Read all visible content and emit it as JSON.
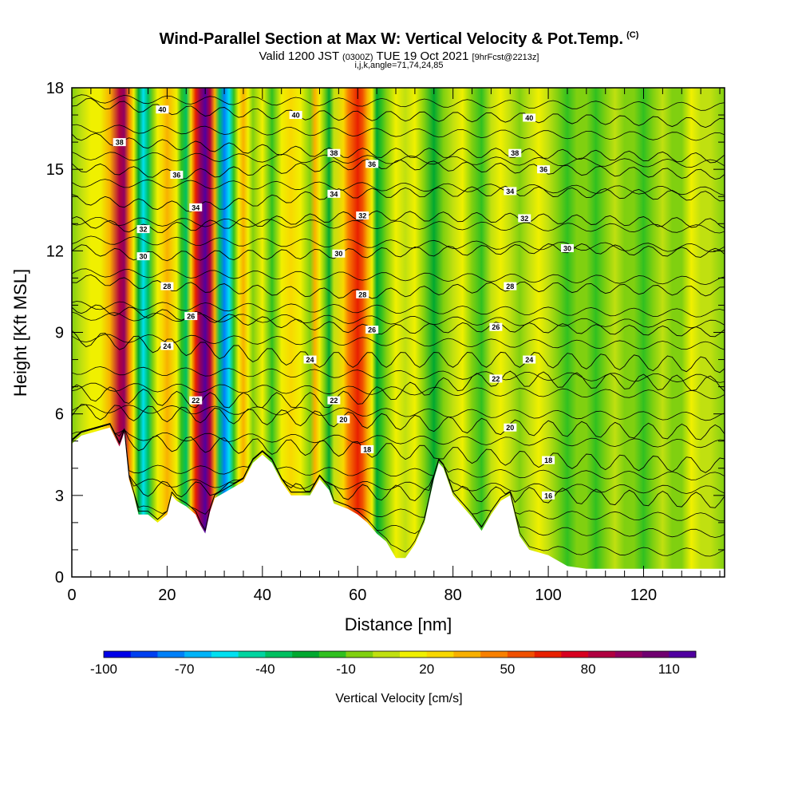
{
  "header": {
    "title": "Wind-Parallel Section at Max W: Vertical Velocity & Pot.Temp.",
    "copyright": "(C)",
    "valid_prefix": "Valid 1200 JST",
    "valid_utc": "(0300Z)",
    "valid_date": "TUE 19 Oct 2021",
    "forecast": "[9hrFcst@2213z]",
    "params": "i,j,k,angle=71,74,24,85"
  },
  "chart_data": {
    "type": "heatmap",
    "xlabel": "Distance [nm]",
    "ylabel": "Height [Kft MSL]",
    "xlim": [
      0,
      137
    ],
    "ylim": [
      0,
      18
    ],
    "x_ticks": [
      "0",
      "20",
      "40",
      "60",
      "80",
      "100",
      "120"
    ],
    "y_ticks": [
      "0",
      "3",
      "6",
      "9",
      "12",
      "15",
      "18"
    ],
    "x_tick_values": [
      0,
      20,
      40,
      60,
      80,
      100,
      120
    ],
    "y_tick_values": [
      0,
      3,
      6,
      9,
      12,
      15,
      18
    ],
    "colorbar": {
      "title": "Vertical Velocity [cm/s]",
      "min": -100,
      "max": 120,
      "step": 10,
      "tick_labels": [
        "-100",
        "-70",
        "-40",
        "-10",
        "20",
        "50",
        "80",
        "110"
      ],
      "tick_values": [
        -100,
        -70,
        -40,
        -10,
        20,
        50,
        80,
        110
      ],
      "colors": [
        "#0000e8",
        "#0040f0",
        "#0080f8",
        "#00b4f8",
        "#00e0f0",
        "#00d4a0",
        "#00c060",
        "#00a830",
        "#30c020",
        "#80d010",
        "#c0e010",
        "#f0f000",
        "#f8d800",
        "#f8b000",
        "#f88000",
        "#f05000",
        "#e82000",
        "#d80020",
        "#b00040",
        "#900060",
        "#700070",
        "#5000a0"
      ]
    },
    "vertical_velocity_columns": [
      {
        "x": 0,
        "w": -5
      },
      {
        "x": 2,
        "w": 5
      },
      {
        "x": 4,
        "w": 12
      },
      {
        "x": 6,
        "w": 15
      },
      {
        "x": 8,
        "w": 35
      },
      {
        "x": 10,
        "w": 80
      },
      {
        "x": 11,
        "w": 90
      },
      {
        "x": 12,
        "w": 45
      },
      {
        "x": 13,
        "w": 15
      },
      {
        "x": 14,
        "w": -30
      },
      {
        "x": 15,
        "w": -60
      },
      {
        "x": 16,
        "w": -40
      },
      {
        "x": 17,
        "w": -10
      },
      {
        "x": 18,
        "w": 15
      },
      {
        "x": 19,
        "w": 25
      },
      {
        "x": 20,
        "w": 30
      },
      {
        "x": 22,
        "w": 10
      },
      {
        "x": 23,
        "w": -15
      },
      {
        "x": 24,
        "w": -40
      },
      {
        "x": 25,
        "w": 20
      },
      {
        "x": 26,
        "w": 60
      },
      {
        "x": 27,
        "w": 95
      },
      {
        "x": 28,
        "w": 110
      },
      {
        "x": 29,
        "w": 80
      },
      {
        "x": 30,
        "w": 30
      },
      {
        "x": 31,
        "w": -40
      },
      {
        "x": 32,
        "w": -75
      },
      {
        "x": 33,
        "w": -55
      },
      {
        "x": 34,
        "w": -20
      },
      {
        "x": 35,
        "w": 15
      },
      {
        "x": 36,
        "w": 30
      },
      {
        "x": 37,
        "w": 10
      },
      {
        "x": 38,
        "w": -5
      },
      {
        "x": 40,
        "w": 10
      },
      {
        "x": 42,
        "w": -15
      },
      {
        "x": 44,
        "w": 15
      },
      {
        "x": 46,
        "w": 25
      },
      {
        "x": 48,
        "w": 10
      },
      {
        "x": 50,
        "w": -5
      },
      {
        "x": 51,
        "w": 30
      },
      {
        "x": 52,
        "w": 15
      },
      {
        "x": 53,
        "w": -10
      },
      {
        "x": 54,
        "w": -25
      },
      {
        "x": 55,
        "w": 5
      },
      {
        "x": 57,
        "w": 20
      },
      {
        "x": 58,
        "w": 40
      },
      {
        "x": 59,
        "w": 55
      },
      {
        "x": 60,
        "w": 65
      },
      {
        "x": 61,
        "w": 50
      },
      {
        "x": 62,
        "w": 35
      },
      {
        "x": 63,
        "w": 10
      },
      {
        "x": 64,
        "w": -30
      },
      {
        "x": 65,
        "w": -20
      },
      {
        "x": 66,
        "w": -5
      },
      {
        "x": 68,
        "w": 15
      },
      {
        "x": 70,
        "w": 5
      },
      {
        "x": 72,
        "w": 15
      },
      {
        "x": 74,
        "w": -5
      },
      {
        "x": 76,
        "w": -25
      },
      {
        "x": 78,
        "w": -10
      },
      {
        "x": 80,
        "w": 5
      },
      {
        "x": 82,
        "w": 15
      },
      {
        "x": 84,
        "w": -5
      },
      {
        "x": 86,
        "w": -15
      },
      {
        "x": 88,
        "w": 5
      },
      {
        "x": 90,
        "w": 15
      },
      {
        "x": 92,
        "w": 5
      },
      {
        "x": 94,
        "w": -10
      },
      {
        "x": 96,
        "w": 5
      },
      {
        "x": 98,
        "w": 10
      },
      {
        "x": 100,
        "w": 0
      },
      {
        "x": 102,
        "w": -5
      },
      {
        "x": 104,
        "w": -15
      },
      {
        "x": 106,
        "w": -5
      },
      {
        "x": 108,
        "w": -10
      },
      {
        "x": 110,
        "w": -20
      },
      {
        "x": 112,
        "w": -10
      },
      {
        "x": 114,
        "w": 0
      },
      {
        "x": 116,
        "w": -10
      },
      {
        "x": 118,
        "w": -5
      },
      {
        "x": 120,
        "w": -15
      },
      {
        "x": 122,
        "w": -5
      },
      {
        "x": 124,
        "w": 5
      },
      {
        "x": 126,
        "w": -10
      },
      {
        "x": 128,
        "w": -5
      },
      {
        "x": 130,
        "w": 10
      },
      {
        "x": 132,
        "w": 5
      },
      {
        "x": 134,
        "w": 0
      },
      {
        "x": 137,
        "w": -5
      }
    ],
    "terrain": [
      {
        "x": 0,
        "h": 4.9
      },
      {
        "x": 2,
        "h": 5.2
      },
      {
        "x": 4,
        "h": 5.3
      },
      {
        "x": 8,
        "h": 5.5
      },
      {
        "x": 10,
        "h": 4.8
      },
      {
        "x": 11,
        "h": 5.3
      },
      {
        "x": 12,
        "h": 3.6
      },
      {
        "x": 13,
        "h": 3.0
      },
      {
        "x": 14,
        "h": 2.3
      },
      {
        "x": 16,
        "h": 2.3
      },
      {
        "x": 18,
        "h": 2.0
      },
      {
        "x": 20,
        "h": 2.3
      },
      {
        "x": 21,
        "h": 3.0
      },
      {
        "x": 22,
        "h": 2.8
      },
      {
        "x": 24,
        "h": 2.6
      },
      {
        "x": 26,
        "h": 2.3
      },
      {
        "x": 27,
        "h": 1.9
      },
      {
        "x": 28,
        "h": 1.6
      },
      {
        "x": 29,
        "h": 2.4
      },
      {
        "x": 30,
        "h": 2.9
      },
      {
        "x": 33,
        "h": 3.2
      },
      {
        "x": 36,
        "h": 3.5
      },
      {
        "x": 38,
        "h": 4.2
      },
      {
        "x": 40,
        "h": 4.5
      },
      {
        "x": 42,
        "h": 4.2
      },
      {
        "x": 44,
        "h": 3.5
      },
      {
        "x": 46,
        "h": 3.0
      },
      {
        "x": 50,
        "h": 3.0
      },
      {
        "x": 52,
        "h": 3.6
      },
      {
        "x": 54,
        "h": 3.2
      },
      {
        "x": 55,
        "h": 2.7
      },
      {
        "x": 58,
        "h": 2.5
      },
      {
        "x": 60,
        "h": 2.3
      },
      {
        "x": 62,
        "h": 2.0
      },
      {
        "x": 64,
        "h": 1.6
      },
      {
        "x": 66,
        "h": 1.3
      },
      {
        "x": 68,
        "h": 0.7
      },
      {
        "x": 70,
        "h": 0.7
      },
      {
        "x": 72,
        "h": 1.2
      },
      {
        "x": 74,
        "h": 2.0
      },
      {
        "x": 76,
        "h": 3.6
      },
      {
        "x": 77,
        "h": 4.2
      },
      {
        "x": 78,
        "h": 4.0
      },
      {
        "x": 80,
        "h": 3.0
      },
      {
        "x": 82,
        "h": 2.6
      },
      {
        "x": 84,
        "h": 2.2
      },
      {
        "x": 86,
        "h": 1.7
      },
      {
        "x": 88,
        "h": 2.3
      },
      {
        "x": 90,
        "h": 2.8
      },
      {
        "x": 92,
        "h": 3.0
      },
      {
        "x": 94,
        "h": 1.5
      },
      {
        "x": 96,
        "h": 1.0
      },
      {
        "x": 100,
        "h": 0.8
      },
      {
        "x": 104,
        "h": 0.4
      },
      {
        "x": 108,
        "h": 0.3
      },
      {
        "x": 112,
        "h": 0.3
      },
      {
        "x": 120,
        "h": 0.3
      },
      {
        "x": 130,
        "h": 0.3
      },
      {
        "x": 137,
        "h": 0.3
      }
    ],
    "isentrope_labels": [
      {
        "text": "40",
        "x": 19,
        "y": 17.2
      },
      {
        "text": "40",
        "x": 47,
        "y": 17.0
      },
      {
        "text": "40",
        "x": 96,
        "y": 16.9
      },
      {
        "text": "38",
        "x": 10,
        "y": 16.0
      },
      {
        "text": "38",
        "x": 55,
        "y": 15.6
      },
      {
        "text": "38",
        "x": 93,
        "y": 15.6
      },
      {
        "text": "36",
        "x": 22,
        "y": 14.8
      },
      {
        "text": "36",
        "x": 63,
        "y": 15.2
      },
      {
        "text": "36",
        "x": 99,
        "y": 15.0
      },
      {
        "text": "34",
        "x": 26,
        "y": 13.6
      },
      {
        "text": "34",
        "x": 55,
        "y": 14.1
      },
      {
        "text": "34",
        "x": 92,
        "y": 14.2
      },
      {
        "text": "32",
        "x": 15,
        "y": 12.8
      },
      {
        "text": "32",
        "x": 61,
        "y": 13.3
      },
      {
        "text": "32",
        "x": 95,
        "y": 13.2
      },
      {
        "text": "30",
        "x": 15,
        "y": 11.8
      },
      {
        "text": "30",
        "x": 56,
        "y": 11.9
      },
      {
        "text": "30",
        "x": 104,
        "y": 12.1
      },
      {
        "text": "28",
        "x": 20,
        "y": 10.7
      },
      {
        "text": "28",
        "x": 61,
        "y": 10.4
      },
      {
        "text": "28",
        "x": 92,
        "y": 10.7
      },
      {
        "text": "26",
        "x": 25,
        "y": 9.6
      },
      {
        "text": "26",
        "x": 63,
        "y": 9.1
      },
      {
        "text": "26",
        "x": 89,
        "y": 9.2
      },
      {
        "text": "24",
        "x": 20,
        "y": 8.5
      },
      {
        "text": "24",
        "x": 50,
        "y": 8.0
      },
      {
        "text": "24",
        "x": 96,
        "y": 8.0
      },
      {
        "text": "22",
        "x": 26,
        "y": 6.5
      },
      {
        "text": "22",
        "x": 55,
        "y": 6.5
      },
      {
        "text": "22",
        "x": 89,
        "y": 7.3
      },
      {
        "text": "20",
        "x": 57,
        "y": 5.8
      },
      {
        "text": "20",
        "x": 92,
        "y": 5.5
      },
      {
        "text": "18",
        "x": 62,
        "y": 4.7
      },
      {
        "text": "18",
        "x": 100,
        "y": 4.3
      },
      {
        "text": "16",
        "x": 100,
        "y": 3.0
      }
    ]
  }
}
